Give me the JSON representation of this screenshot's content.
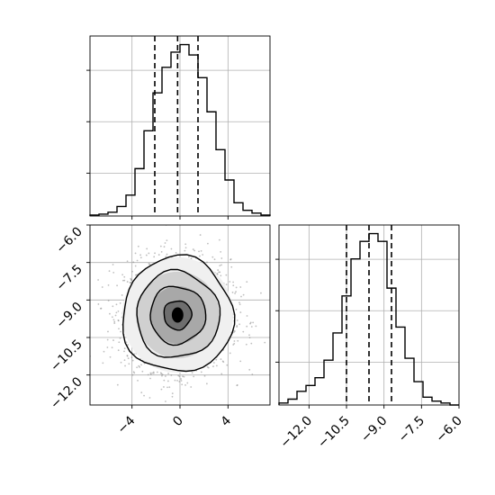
{
  "chart_data": [
    {
      "panel": "top-left",
      "type": "histogram",
      "parameter_index": 0,
      "x_range": [
        -7.5,
        7.5
      ],
      "bins": [
        -7.5,
        -6.75,
        -6.0,
        -5.25,
        -4.5,
        -3.75,
        -3.0,
        -2.25,
        -1.5,
        -0.75,
        0.0,
        0.75,
        1.5,
        2.25,
        3.0,
        3.75,
        4.5,
        5.25,
        6.0,
        6.75,
        7.5
      ],
      "counts": [
        1,
        2,
        4,
        10,
        22,
        50,
        90,
        130,
        157,
        173,
        181,
        170,
        146,
        110,
        70,
        38,
        14,
        6,
        3,
        1
      ],
      "quantiles": [
        -2.1,
        -0.2,
        1.5
      ],
      "grid": true,
      "y_tick_labels_visible": false
    },
    {
      "panel": "bottom-left",
      "type": "scatter-contour",
      "x_param": 0,
      "y_param": 1,
      "x_range": [
        -7.5,
        7.5
      ],
      "y_range": [
        -13.2,
        -6.0
      ],
      "x_ticks": [
        "−4",
        "0",
        "4"
      ],
      "x_tick_values": [
        -4,
        0,
        4
      ],
      "y_ticks": [
        "−6.0",
        "−7.5",
        "−9.0",
        "−10.5",
        "−12.0"
      ],
      "y_tick_values": [
        -6.0,
        -7.5,
        -9.0,
        -10.5,
        -12.0
      ],
      "center": [
        -0.2,
        -9.6
      ],
      "sigma": [
        2.2,
        1.1
      ],
      "contour_levels_sigma": [
        0.5,
        1.0,
        1.5,
        2.0
      ],
      "grid": true
    },
    {
      "panel": "bottom-right",
      "type": "histogram",
      "parameter_index": 1,
      "x_range": [
        -13.2,
        -6.0
      ],
      "bins": [
        -13.2,
        -12.84,
        -12.48,
        -12.12,
        -11.76,
        -11.4,
        -11.04,
        -10.68,
        -10.32,
        -9.96,
        -9.6,
        -9.24,
        -8.88,
        -8.52,
        -8.16,
        -7.8,
        -7.44,
        -7.08,
        -6.72,
        -6.36,
        -6.0
      ],
      "counts": [
        2,
        6,
        14,
        20,
        28,
        46,
        74,
        112,
        150,
        168,
        176,
        168,
        120,
        80,
        48,
        24,
        8,
        4,
        2,
        0
      ],
      "quantiles": [
        -10.5,
        -9.6,
        -8.7
      ],
      "x_ticks": [
        "−12.0",
        "−10.5",
        "−9.0",
        "−7.5",
        "−6.0"
      ],
      "x_tick_values": [
        -12.0,
        -10.5,
        -9.0,
        -7.5,
        -6.0
      ],
      "grid": true,
      "y_tick_labels_visible": false
    }
  ],
  "colors": {
    "line": "#000000",
    "grid": "#b0b0b0",
    "scatter": "#8a8a8a",
    "background": "#ffffff"
  }
}
